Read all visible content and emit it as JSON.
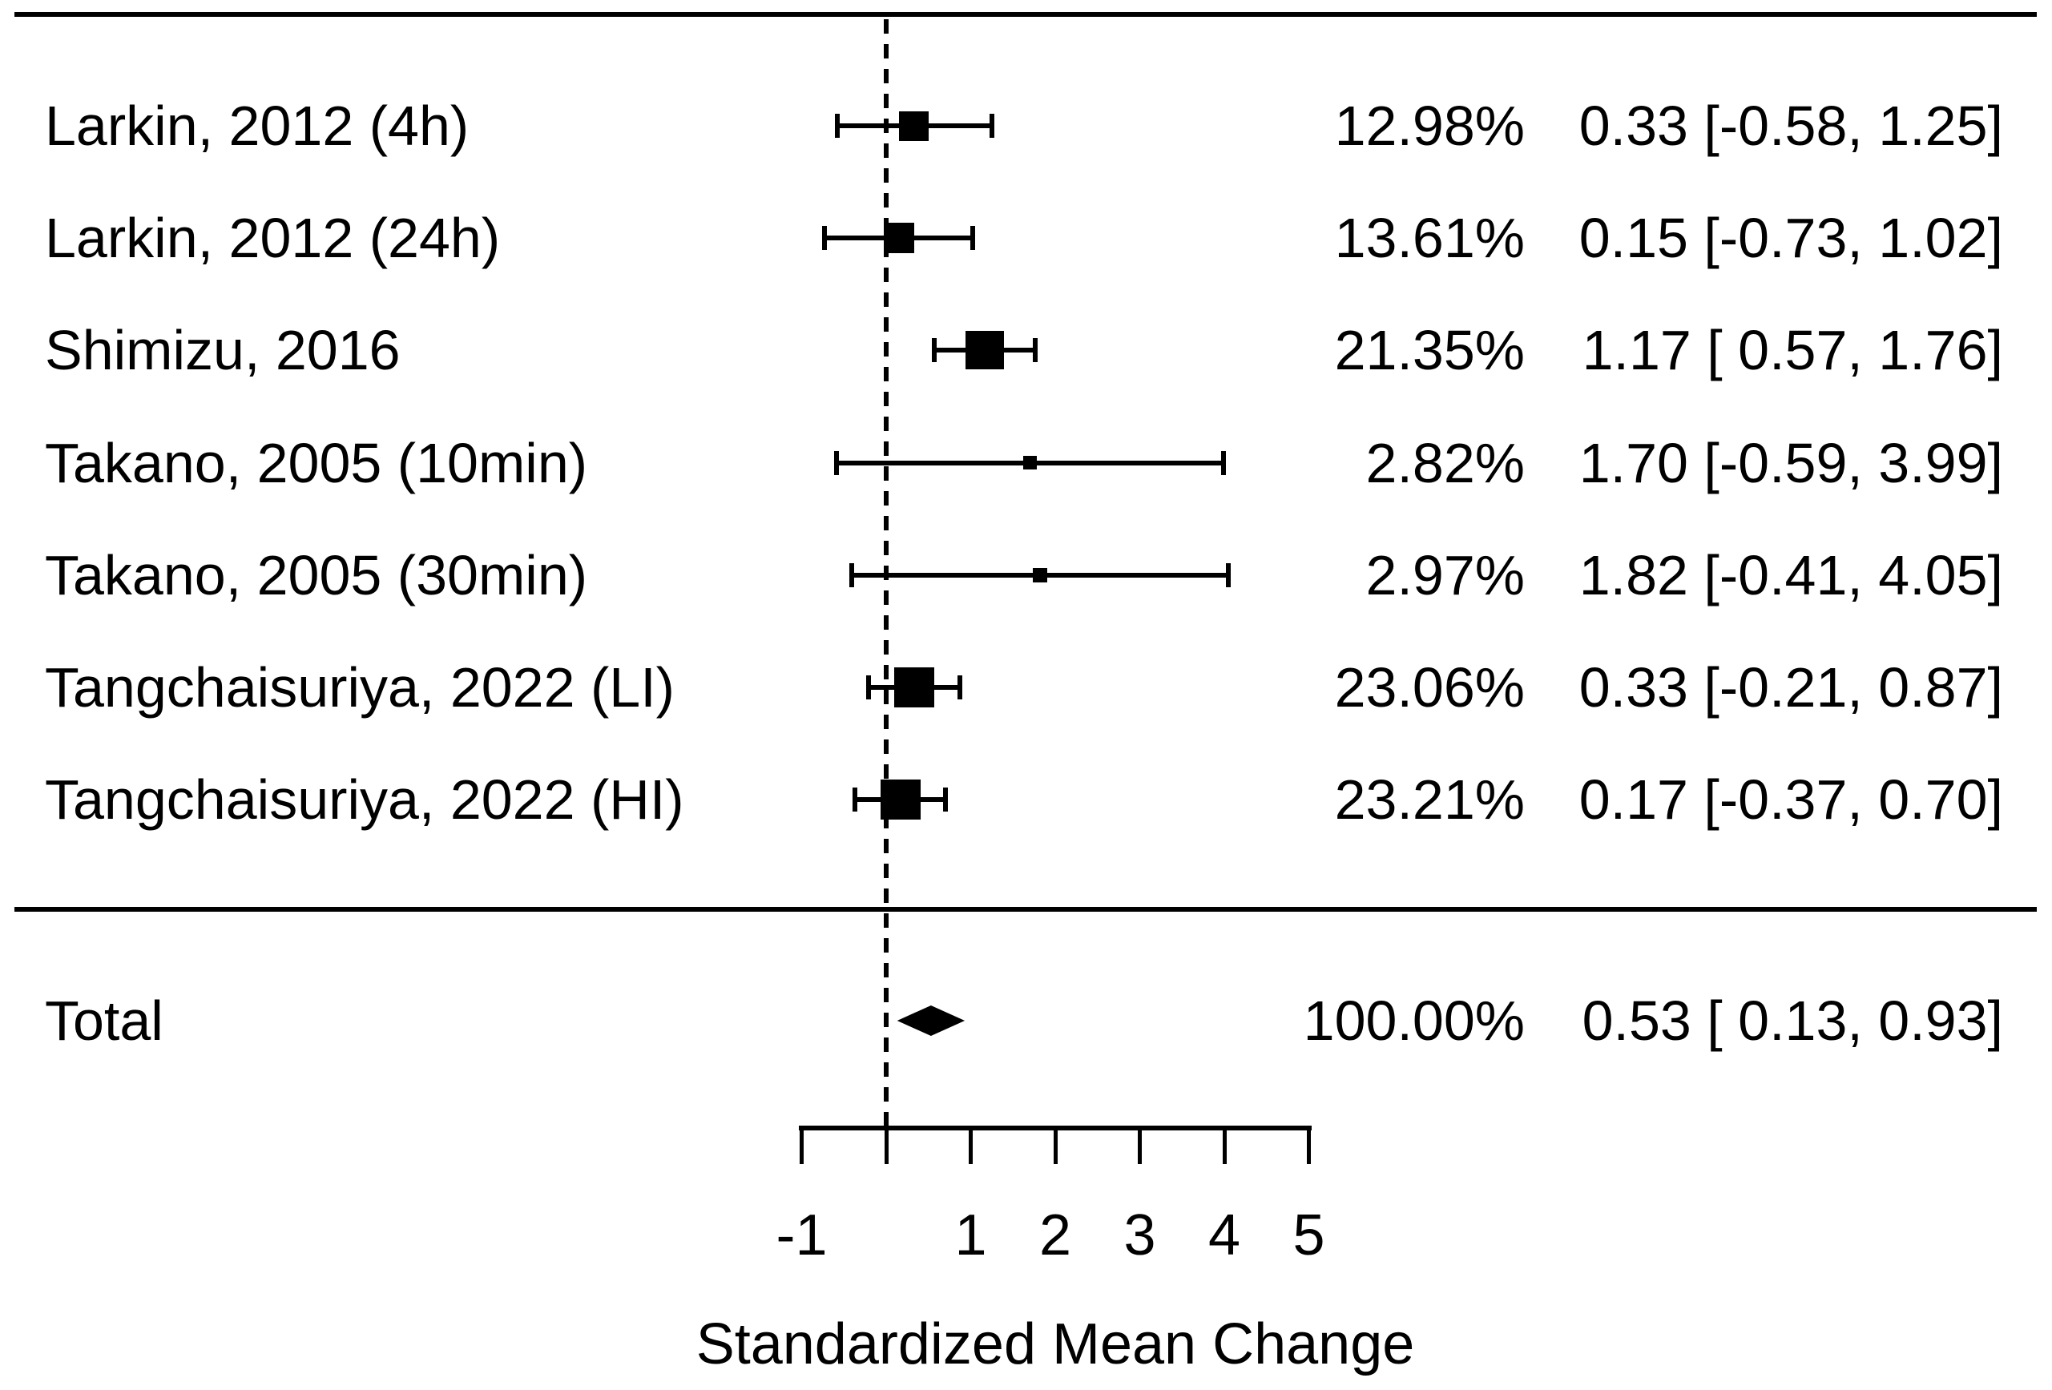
{
  "chart_data": {
    "type": "forest",
    "xlabel": "Standardized Mean Change",
    "x_axis": {
      "range": [
        -1,
        5
      ],
      "ticks": [
        -1,
        0,
        1,
        2,
        3,
        4,
        5
      ],
      "labeled_ticks": [
        -1,
        1,
        2,
        3,
        4,
        5
      ],
      "reference_line": 0
    },
    "effect_measure_colors": {
      "marker": "#000000",
      "line": "#000000",
      "background": "#ffffff"
    },
    "studies": [
      {
        "label": "Larkin, 2012 (4h)",
        "weight_label": "12.98%",
        "weight_pct": 12.98,
        "estimate": 0.33,
        "ci_lower": -0.58,
        "ci_upper": 1.25,
        "estimate_ci_label": "0.33 [-0.58, 1.25]"
      },
      {
        "label": "Larkin, 2012 (24h)",
        "weight_label": "13.61%",
        "weight_pct": 13.61,
        "estimate": 0.15,
        "ci_lower": -0.73,
        "ci_upper": 1.02,
        "estimate_ci_label": "0.15 [-0.73, 1.02]"
      },
      {
        "label": "Shimizu, 2016",
        "weight_label": "21.35%",
        "weight_pct": 21.35,
        "estimate": 1.17,
        "ci_lower": 0.57,
        "ci_upper": 1.76,
        "estimate_ci_label": "1.17 [ 0.57, 1.76]"
      },
      {
        "label": "Takano, 2005 (10min)",
        "weight_label": "2.82%",
        "weight_pct": 2.82,
        "estimate": 1.7,
        "ci_lower": -0.59,
        "ci_upper": 3.99,
        "estimate_ci_label": "1.70 [-0.59, 3.99]"
      },
      {
        "label": "Takano, 2005 (30min)",
        "weight_label": "2.97%",
        "weight_pct": 2.97,
        "estimate": 1.82,
        "ci_lower": -0.41,
        "ci_upper": 4.05,
        "estimate_ci_label": "1.82 [-0.41, 4.05]"
      },
      {
        "label": "Tangchaisuriya, 2022 (LI)",
        "weight_label": "23.06%",
        "weight_pct": 23.06,
        "estimate": 0.33,
        "ci_lower": -0.21,
        "ci_upper": 0.87,
        "estimate_ci_label": "0.33 [-0.21, 0.87]"
      },
      {
        "label": "Tangchaisuriya, 2022 (HI)",
        "weight_label": "23.21%",
        "weight_pct": 23.21,
        "estimate": 0.17,
        "ci_lower": -0.37,
        "ci_upper": 0.7,
        "estimate_ci_label": "0.17 [-0.37, 0.70]"
      }
    ],
    "total": {
      "label": "Total",
      "weight_label": "100.00%",
      "weight_pct": 100.0,
      "estimate": 0.53,
      "ci_lower": 0.13,
      "ci_upper": 0.93,
      "estimate_ci_label": "0.53 [ 0.13, 0.93]"
    }
  }
}
